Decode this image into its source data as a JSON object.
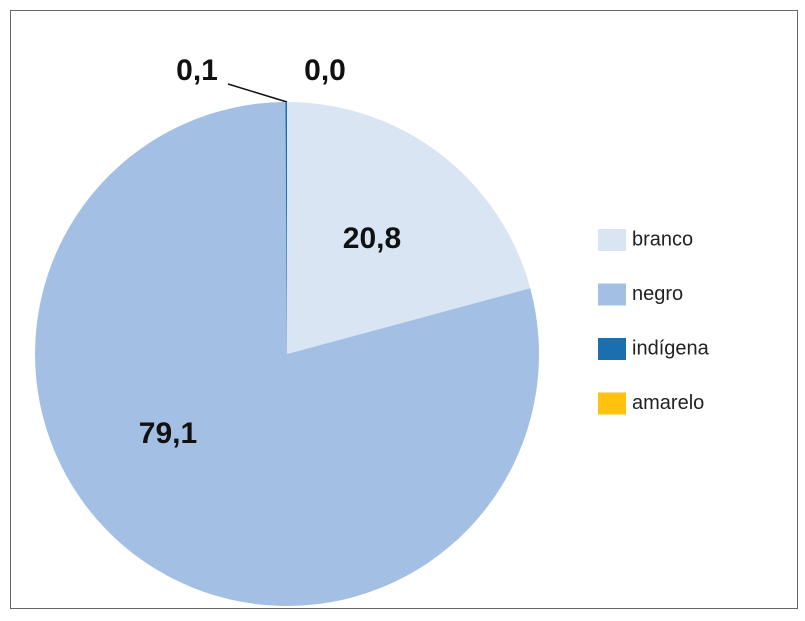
{
  "chart_data": {
    "type": "pie",
    "categories": [
      "branco",
      "negro",
      "indígena",
      "amarelo"
    ],
    "values": [
      20.8,
      79.1,
      0.1,
      0.0
    ],
    "value_labels": [
      "20,8",
      "79,1",
      "0,1",
      "0,0"
    ],
    "colors": [
      "#dae5f4",
      "#a3c0e4",
      "#1b6fae",
      "#ffc20e"
    ]
  }
}
